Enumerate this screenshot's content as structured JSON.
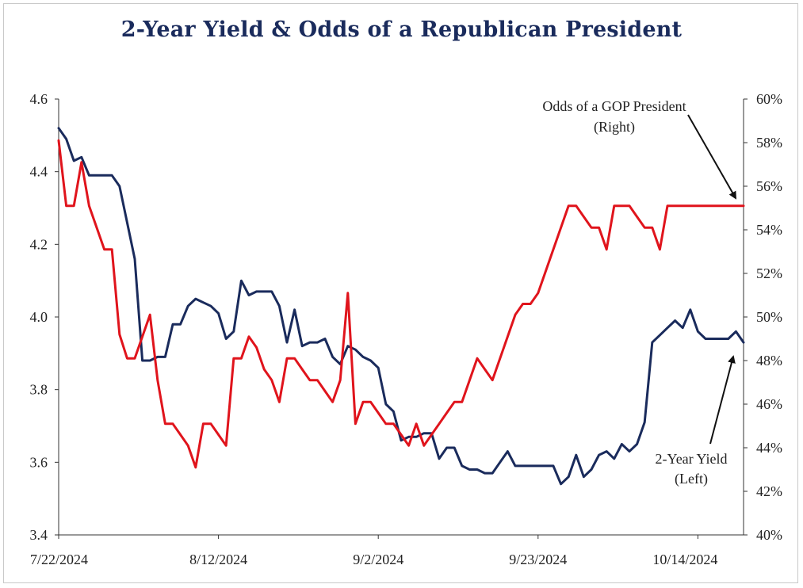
{
  "chart_data": {
    "type": "line",
    "title": "2-Year Yield & Odds of a Republican President",
    "x_tick_labels": [
      "7/22/2024",
      "8/12/2024",
      "9/2/2024",
      "9/23/2024",
      "10/14/2024"
    ],
    "x_tick_dates": [
      "2024-07-22",
      "2024-08-12",
      "2024-09-02",
      "2024-09-23",
      "2024-10-14"
    ],
    "x_range": [
      "2024-07-22",
      "2024-10-20"
    ],
    "y_left": {
      "range": [
        3.4,
        4.6
      ],
      "ticks": [
        "3.4",
        "3.6",
        "3.8",
        "4.0",
        "4.2",
        "4.4",
        "4.6"
      ],
      "tick_values": [
        3.4,
        3.6,
        3.8,
        4.0,
        4.2,
        4.4,
        4.6
      ]
    },
    "y_right": {
      "range": [
        40,
        60
      ],
      "ticks": [
        "40%",
        "42%",
        "44%",
        "46%",
        "48%",
        "50%",
        "52%",
        "54%",
        "56%",
        "58%",
        "60%"
      ],
      "tick_values": [
        40,
        42,
        44,
        46,
        48,
        50,
        52,
        54,
        56,
        58,
        60
      ]
    },
    "grid": false,
    "series": [
      {
        "axis": "left",
        "color": "#1a2b5c",
        "dates": [
          "2024-07-22",
          "2024-07-23",
          "2024-07-24",
          "2024-07-25",
          "2024-07-26",
          "2024-07-27",
          "2024-07-28",
          "2024-07-29",
          "2024-07-30",
          "2024-07-31",
          "2024-08-01",
          "2024-08-02",
          "2024-08-03",
          "2024-08-04",
          "2024-08-05",
          "2024-08-06",
          "2024-08-07",
          "2024-08-08",
          "2024-08-09",
          "2024-08-10",
          "2024-08-11",
          "2024-08-12",
          "2024-08-13",
          "2024-08-14",
          "2024-08-15",
          "2024-08-16",
          "2024-08-17",
          "2024-08-18",
          "2024-08-19",
          "2024-08-20",
          "2024-08-21",
          "2024-08-22",
          "2024-08-23",
          "2024-08-24",
          "2024-08-25",
          "2024-08-26",
          "2024-08-27",
          "2024-08-28",
          "2024-08-29",
          "2024-08-30",
          "2024-08-31",
          "2024-09-01",
          "2024-09-02",
          "2024-09-03",
          "2024-09-04",
          "2024-09-05",
          "2024-09-06",
          "2024-09-07",
          "2024-09-08",
          "2024-09-09",
          "2024-09-10",
          "2024-09-11",
          "2024-09-12",
          "2024-09-13",
          "2024-09-14",
          "2024-09-15",
          "2024-09-16",
          "2024-09-17",
          "2024-09-18",
          "2024-09-19",
          "2024-09-20",
          "2024-09-21",
          "2024-09-22",
          "2024-09-23",
          "2024-09-24",
          "2024-09-25",
          "2024-09-26",
          "2024-09-27",
          "2024-09-28",
          "2024-09-29",
          "2024-09-30",
          "2024-10-01",
          "2024-10-02",
          "2024-10-03",
          "2024-10-04",
          "2024-10-05",
          "2024-10-06",
          "2024-10-07",
          "2024-10-08",
          "2024-10-09",
          "2024-10-10",
          "2024-10-11",
          "2024-10-12",
          "2024-10-13",
          "2024-10-14",
          "2024-10-15",
          "2024-10-16",
          "2024-10-17",
          "2024-10-18",
          "2024-10-19",
          "2024-10-20"
        ],
        "values": [
          4.52,
          4.49,
          4.43,
          4.44,
          4.39,
          4.39,
          4.39,
          4.39,
          4.36,
          4.26,
          4.16,
          3.88,
          3.88,
          3.89,
          3.89,
          3.98,
          3.98,
          4.03,
          4.05,
          4.04,
          4.03,
          4.01,
          3.94,
          3.96,
          4.1,
          4.06,
          4.07,
          4.07,
          4.07,
          4.03,
          3.93,
          4.02,
          3.92,
          3.93,
          3.93,
          3.94,
          3.89,
          3.87,
          3.92,
          3.91,
          3.89,
          3.88,
          3.86,
          3.76,
          3.74,
          3.66,
          3.67,
          3.67,
          3.68,
          3.68,
          3.61,
          3.64,
          3.64,
          3.59,
          3.58,
          3.58,
          3.57,
          3.57,
          3.6,
          3.63,
          3.59,
          3.59,
          3.59,
          3.59,
          3.59,
          3.59,
          3.54,
          3.56,
          3.62,
          3.56,
          3.58,
          3.62,
          3.63,
          3.61,
          3.65,
          3.63,
          3.65,
          3.71,
          3.93,
          3.95,
          3.97,
          3.99,
          3.97,
          4.02,
          3.96,
          3.94,
          3.94,
          3.94,
          3.94,
          3.96,
          3.93
        ]
      },
      {
        "axis": "right",
        "color": "#e0141c",
        "dates": [
          "2024-07-22",
          "2024-07-23",
          "2024-07-24",
          "2024-07-25",
          "2024-07-26",
          "2024-07-27",
          "2024-07-28",
          "2024-07-29",
          "2024-07-30",
          "2024-07-31",
          "2024-08-01",
          "2024-08-02",
          "2024-08-03",
          "2024-08-04",
          "2024-08-05",
          "2024-08-06",
          "2024-08-07",
          "2024-08-08",
          "2024-08-09",
          "2024-08-10",
          "2024-08-11",
          "2024-08-12",
          "2024-08-13",
          "2024-08-14",
          "2024-08-15",
          "2024-08-16",
          "2024-08-17",
          "2024-08-18",
          "2024-08-19",
          "2024-08-20",
          "2024-08-21",
          "2024-08-22",
          "2024-08-23",
          "2024-08-24",
          "2024-08-25",
          "2024-08-26",
          "2024-08-27",
          "2024-08-28",
          "2024-08-29",
          "2024-08-30",
          "2024-08-31",
          "2024-09-01",
          "2024-09-02",
          "2024-09-03",
          "2024-09-04",
          "2024-09-05",
          "2024-09-06",
          "2024-09-07",
          "2024-09-08",
          "2024-09-09",
          "2024-09-10",
          "2024-09-11",
          "2024-09-12",
          "2024-09-13",
          "2024-09-14",
          "2024-09-15",
          "2024-09-16",
          "2024-09-17",
          "2024-09-18",
          "2024-09-19",
          "2024-09-20",
          "2024-09-21",
          "2024-09-22",
          "2024-09-23",
          "2024-09-24",
          "2024-09-25",
          "2024-09-26",
          "2024-09-27",
          "2024-09-28",
          "2024-09-29",
          "2024-09-30",
          "2024-10-01",
          "2024-10-02",
          "2024-10-03",
          "2024-10-04",
          "2024-10-05",
          "2024-10-06",
          "2024-10-07",
          "2024-10-08",
          "2024-10-09",
          "2024-10-10",
          "2024-10-11",
          "2024-10-12",
          "2024-10-13",
          "2024-10-14",
          "2024-10-15",
          "2024-10-16",
          "2024-10-17",
          "2024-10-18",
          "2024-10-19",
          "2024-10-20"
        ],
        "values": [
          58.1,
          55.1,
          55.1,
          57.1,
          55.1,
          54.1,
          53.1,
          53.1,
          49.2,
          48.1,
          48.1,
          49.1,
          50.1,
          47.1,
          45.1,
          45.1,
          44.6,
          44.1,
          43.1,
          45.1,
          45.1,
          44.6,
          44.1,
          48.1,
          48.1,
          49.1,
          48.6,
          47.6,
          47.1,
          46.1,
          48.1,
          48.1,
          47.6,
          47.1,
          47.1,
          46.6,
          46.1,
          47.1,
          51.1,
          45.1,
          46.1,
          46.1,
          45.6,
          45.1,
          45.1,
          44.6,
          44.1,
          45.1,
          44.1,
          44.6,
          45.1,
          45.6,
          46.1,
          46.1,
          47.1,
          48.1,
          47.6,
          47.1,
          48.1,
          49.1,
          50.1,
          50.6,
          50.6,
          51.1,
          52.1,
          53.1,
          54.1,
          55.1,
          55.1,
          54.6,
          54.1,
          54.1,
          53.1,
          55.1,
          55.1,
          55.1,
          54.6,
          54.1,
          54.1,
          53.1,
          55.1,
          55.1,
          55.1,
          55.1,
          55.1,
          55.1,
          55.1,
          55.1,
          55.1,
          55.1,
          55.1
        ]
      }
    ],
    "annotations": [
      {
        "lines": [
          "Odds of a GOP President",
          "(Right)"
        ]
      },
      {
        "lines": [
          "2-Year Yield",
          "(Left)"
        ]
      }
    ]
  }
}
